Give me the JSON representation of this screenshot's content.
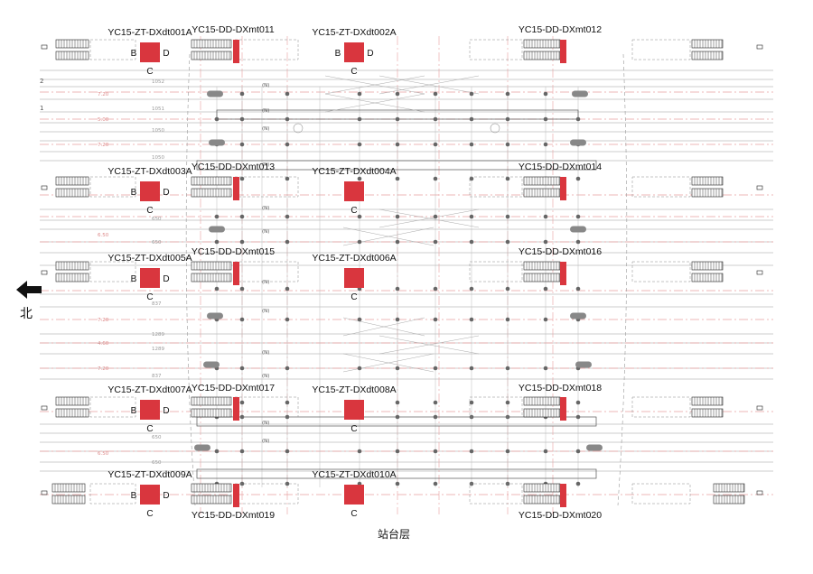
{
  "title": "站台层",
  "north_label": "北",
  "colors": {
    "equipment": "#d9363e",
    "axis": "#e8a0a0",
    "track": "#9c9c9c",
    "ink": "#222222"
  },
  "boxes": [
    {
      "id": "YC15-ZT-DXdt001A",
      "side": "B",
      "end": "D",
      "bottom": "C"
    },
    {
      "id": "YC15-ZT-DXdt002A",
      "side": "B",
      "end": "D",
      "bottom": "C"
    },
    {
      "id": "YC15-ZT-DXdt003A",
      "side": "B",
      "end": "D",
      "bottom": "C"
    },
    {
      "id": "YC15-ZT-DXdt004A",
      "side": "",
      "end": "",
      "bottom": "C"
    },
    {
      "id": "YC15-ZT-DXdt005A",
      "side": "B",
      "end": "D",
      "bottom": "C"
    },
    {
      "id": "YC15-ZT-DXdt006A",
      "side": "",
      "end": "",
      "bottom": "C"
    },
    {
      "id": "YC15-ZT-DXdt007A",
      "side": "B",
      "end": "D",
      "bottom": "C"
    },
    {
      "id": "YC15-ZT-DXdt008A",
      "side": "",
      "end": "",
      "bottom": "C"
    },
    {
      "id": "YC15-ZT-DXdt009A",
      "side": "B",
      "end": "D",
      "bottom": "C"
    },
    {
      "id": "YC15-ZT-DXdt010A",
      "side": "",
      "end": "",
      "bottom": "C"
    }
  ],
  "escalator_labels": [
    "YC15-DD-DXmt011",
    "YC15-DD-DXmt012",
    "YC15-DD-DXmt013",
    "YC15-DD-DXmt014",
    "YC15-DD-DXmt015",
    "YC15-DD-DXmt016",
    "YC15-DD-DXmt017",
    "YC15-DD-DXmt018",
    "YC15-DD-DXmt019",
    "YC15-DD-DXmt020"
  ],
  "row_numbers": [
    "2",
    "1"
  ],
  "dims": [
    "1052",
    "1051",
    "1050",
    "1050",
    "650",
    "650",
    "837",
    "1289",
    "1289",
    "837",
    "650",
    "650"
  ],
  "spacing": [
    "5.00",
    "7.20",
    "7.20",
    "6.50",
    "7.20",
    "4.60",
    "7.20",
    "6.50"
  ],
  "track_tag": "(N)"
}
